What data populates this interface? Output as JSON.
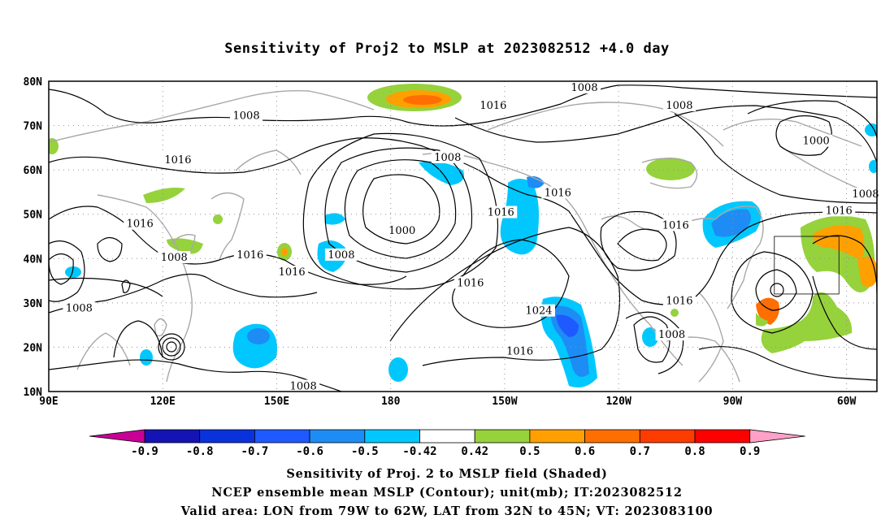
{
  "title": "Sensitivity of Proj2 to MSLP at 2023082512 +4.0 day",
  "map": {
    "lon_labels": [
      "90E",
      "120E",
      "150E",
      "180",
      "150W",
      "120W",
      "90W",
      "60W"
    ],
    "lat_labels": [
      "10N",
      "20N",
      "30N",
      "40N",
      "50N",
      "60N",
      "70N",
      "80N"
    ],
    "lon_range": [
      90,
      308
    ],
    "lat_range": [
      10,
      80
    ],
    "grid_lines": "dotted",
    "valid_area_box": {
      "lon": [
        281,
        298
      ],
      "lat": [
        32,
        45
      ]
    },
    "contour_unit": "mb",
    "contour_labels": [
      {
        "text": "1008",
        "lon": 231,
        "lat": 78.5
      },
      {
        "text": "1016",
        "lon": 207,
        "lat": 74.5
      },
      {
        "text": "1008",
        "lon": 142,
        "lat": 72.2
      },
      {
        "text": "1008",
        "lon": 256,
        "lat": 74.5
      },
      {
        "text": "1000",
        "lon": 292,
        "lat": 66.5
      },
      {
        "text": "1016",
        "lon": 124,
        "lat": 62.2
      },
      {
        "text": "1008",
        "lon": 195,
        "lat": 62.8
      },
      {
        "text": "1016",
        "lon": 224,
        "lat": 54.8
      },
      {
        "text": "1008",
        "lon": 305,
        "lat": 54.5
      },
      {
        "text": "1016",
        "lon": 298,
        "lat": 50.8
      },
      {
        "text": "1016",
        "lon": 209,
        "lat": 50.4
      },
      {
        "text": "1016",
        "lon": 255,
        "lat": 47.5
      },
      {
        "text": "1016",
        "lon": 114,
        "lat": 47.8
      },
      {
        "text": "1000",
        "lon": 183,
        "lat": 46.3
      },
      {
        "text": "1008",
        "lon": 123,
        "lat": 40.2
      },
      {
        "text": "1016",
        "lon": 143,
        "lat": 40.8
      },
      {
        "text": "1008",
        "lon": 167,
        "lat": 40.8
      },
      {
        "text": "1016",
        "lon": 154,
        "lat": 36.9
      },
      {
        "text": "1016",
        "lon": 201,
        "lat": 34.5
      },
      {
        "text": "1016",
        "lon": 256,
        "lat": 30.4
      },
      {
        "text": "1008",
        "lon": 98,
        "lat": 28.8
      },
      {
        "text": "1024",
        "lon": 219,
        "lat": 28.2
      },
      {
        "text": "1008",
        "lon": 254,
        "lat": 22.8
      },
      {
        "text": "1016",
        "lon": 214,
        "lat": 19.1
      },
      {
        "text": "1008",
        "lon": 157,
        "lat": 11.2
      }
    ]
  },
  "colorbar": {
    "labels": [
      "-0.9",
      "-0.8",
      "-0.7",
      "-0.6",
      "-0.5",
      "-0.42",
      "0.42",
      "0.5",
      "0.6",
      "0.7",
      "0.8",
      "0.9"
    ],
    "colors": [
      "#c80096",
      "#1414b4",
      "#0a32dc",
      "#1e5aff",
      "#1e8cf5",
      "#00c8ff",
      "#ffffff",
      "#96d23c",
      "#ffa000",
      "#ff6e00",
      "#ff3c00",
      "#ff0000",
      "#ffa0c8"
    ]
  },
  "captions": {
    "line1": "Sensitivity of Proj. 2 to MSLP field (Shaded)",
    "line2": "NCEP ensemble mean MSLP (Contour); unit(mb); IT:2023082512",
    "line3": "Valid area: LON from 79W to 62W, LAT from 32N to 45N; VT: 2023083100"
  }
}
